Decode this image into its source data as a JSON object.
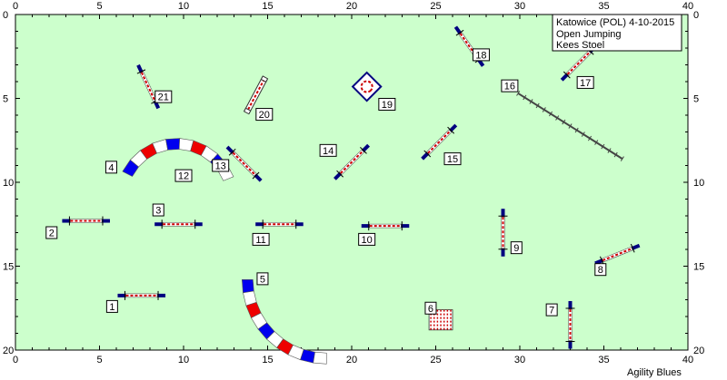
{
  "info": {
    "line1": "Katowice (POL) 4-10-2015",
    "line2": "Open Jumping",
    "line3": "Kees Stoel"
  },
  "footer": "Agility Blues",
  "axes": {
    "x_max": 40,
    "y_max": 20,
    "x_ticks": [
      "0",
      "5",
      "10",
      "15",
      "20",
      "25",
      "30",
      "35",
      "40"
    ],
    "y_ticks": [
      "0",
      "5",
      "10",
      "15",
      "20"
    ]
  },
  "colors": {
    "field": "#ccffcc",
    "pole": "#ffffff",
    "stripe": "#cc0000",
    "wing": "#000080",
    "tunnel_red": "#ee0000",
    "tunnel_blue": "#0000ee"
  },
  "obstacles": [
    {
      "num": "1",
      "type": "jump",
      "cx": 7.5,
      "cy": 16.75,
      "angle": 0,
      "len": 2.3,
      "label_pos": [
        5.75,
        17.4
      ]
    },
    {
      "num": "2",
      "type": "jump",
      "cx": 4.2,
      "cy": 12.3,
      "angle": 0,
      "len": 2.3,
      "label_pos": [
        2.15,
        13.0
      ]
    },
    {
      "num": "3",
      "type": "jump",
      "cx": 9.7,
      "cy": 12.5,
      "angle": 0,
      "len": 2.3,
      "label_pos": [
        8.5,
        11.65
      ]
    },
    {
      "num": "4",
      "type": "tunnel_arc",
      "label_pos": [
        5.7,
        9.1
      ]
    },
    {
      "num": "5",
      "type": "tunnel_arc",
      "label_pos": [
        14.7,
        15.75
      ]
    },
    {
      "num": "6",
      "type": "weave",
      "label_pos": [
        24.7,
        17.5
      ]
    },
    {
      "num": "7",
      "type": "jump",
      "cx": 33.0,
      "cy": 18.5,
      "angle": 90,
      "len": 2.3,
      "label_pos": [
        31.9,
        17.6
      ]
    },
    {
      "num": "8",
      "type": "jump",
      "cx": 35.8,
      "cy": 14.3,
      "angle": -22,
      "len": 2.3,
      "label_pos": [
        34.8,
        15.2
      ]
    },
    {
      "num": "9",
      "type": "jump",
      "cx": 29.0,
      "cy": 13.0,
      "angle": 90,
      "len": 2.3,
      "label_pos": [
        29.8,
        13.9
      ]
    },
    {
      "num": "10",
      "type": "jump",
      "cx": 22.0,
      "cy": 12.6,
      "angle": 0,
      "len": 2.3,
      "label_pos": [
        20.9,
        13.4
      ]
    },
    {
      "num": "11",
      "type": "jump",
      "cx": 15.7,
      "cy": 12.5,
      "angle": 0,
      "len": 2.3,
      "label_pos": [
        14.6,
        13.4
      ]
    },
    {
      "num": "12",
      "type": "tunnel_arc",
      "label_pos": [
        10.0,
        9.6
      ]
    },
    {
      "num": "13",
      "type": "jump",
      "cx": 13.6,
      "cy": 8.9,
      "angle": 45,
      "len": 2.3,
      "label_pos": [
        12.2,
        9.0
      ]
    },
    {
      "num": "14",
      "type": "jump",
      "cx": 20.0,
      "cy": 8.8,
      "angle": -45,
      "len": 2.3,
      "label_pos": [
        18.6,
        8.1
      ]
    },
    {
      "num": "15",
      "type": "jump",
      "cx": 25.2,
      "cy": 7.6,
      "angle": -45,
      "len": 2.3,
      "label_pos": [
        26.0,
        8.6
      ]
    },
    {
      "num": "16",
      "type": "walk",
      "label_pos": [
        29.4,
        4.25
      ]
    },
    {
      "num": "17",
      "type": "jump",
      "cx": 33.5,
      "cy": 2.9,
      "angle": -45,
      "len": 2.3,
      "label_pos": [
        33.9,
        4.05
      ]
    },
    {
      "num": "18",
      "type": "jump",
      "cx": 27.0,
      "cy": 1.9,
      "angle": 55,
      "len": 2.3,
      "label_pos": [
        27.7,
        2.4
      ]
    },
    {
      "num": "19",
      "type": "table",
      "label_pos": [
        22.1,
        5.35
      ]
    },
    {
      "num": "20",
      "type": "tire",
      "label_pos": [
        14.8,
        5.95
      ]
    },
    {
      "num": "21",
      "type": "jump",
      "cx": 7.9,
      "cy": 4.3,
      "angle": 65,
      "len": 2.3,
      "label_pos": [
        8.8,
        4.9
      ]
    }
  ]
}
